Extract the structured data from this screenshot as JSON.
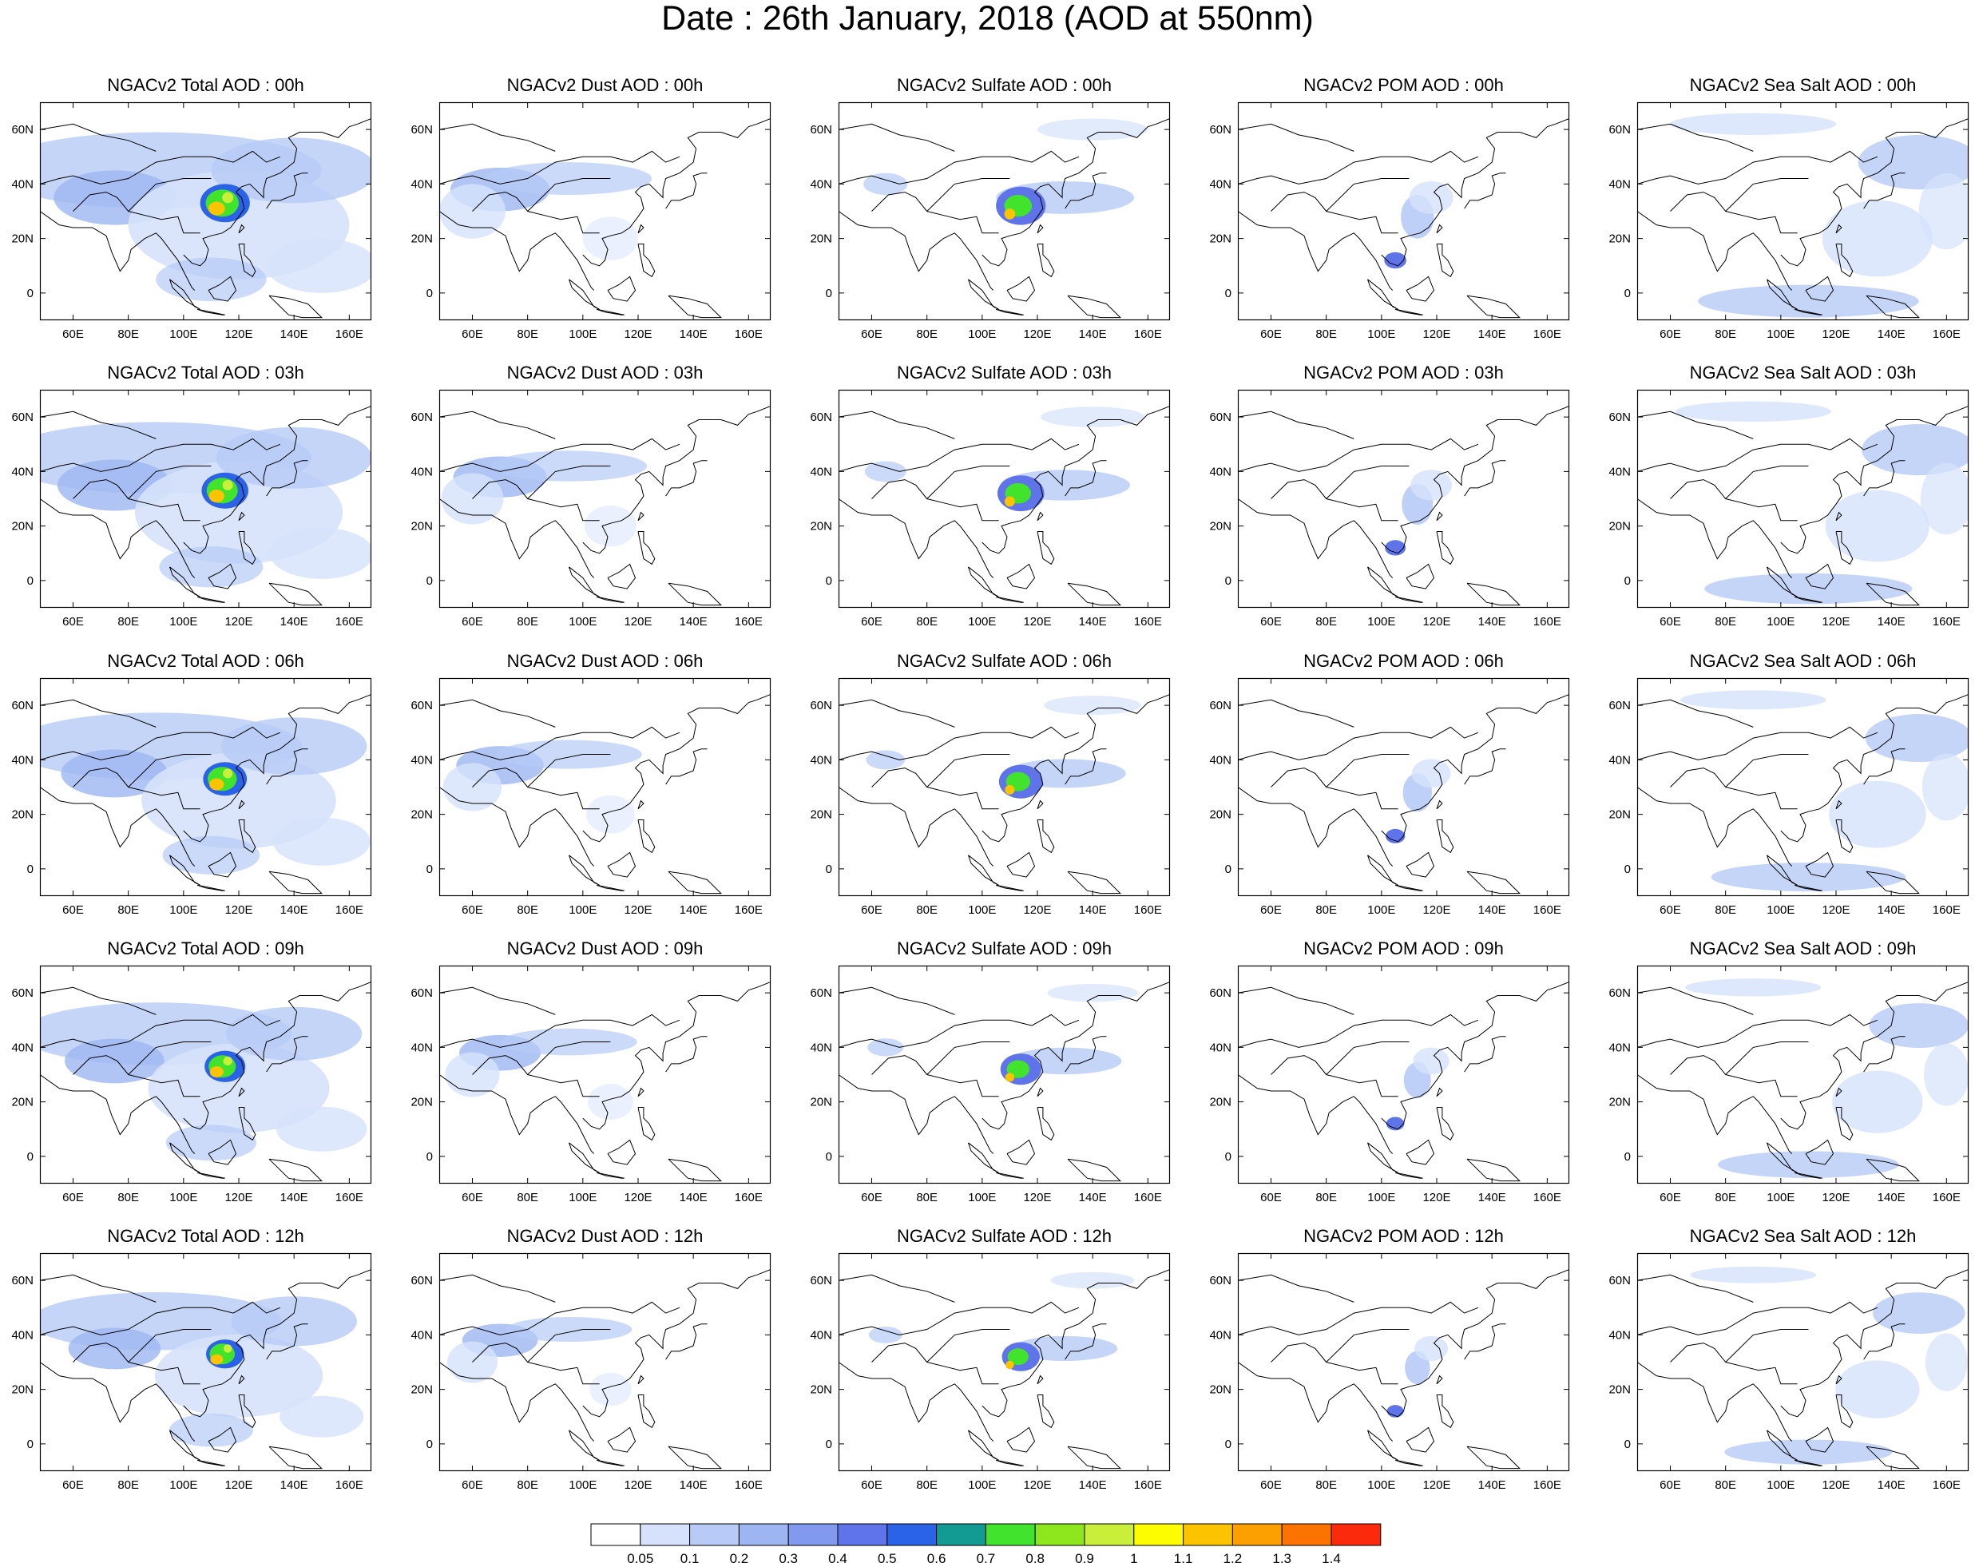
{
  "title": "Date : 26th January, 2018 (AOD at 550nm)",
  "panels": [
    [
      "NGACv2 Total AOD : 00h",
      "NGACv2 Dust AOD : 00h",
      "NGACv2 Sulfate AOD : 00h",
      "NGACv2 POM AOD : 00h",
      "NGACv2 Sea Salt AOD : 00h"
    ],
    [
      "NGACv2 Total AOD : 03h",
      "NGACv2 Dust AOD : 03h",
      "NGACv2 Sulfate AOD : 03h",
      "NGACv2 POM AOD : 03h",
      "NGACv2 Sea Salt AOD : 03h"
    ],
    [
      "NGACv2 Total AOD : 06h",
      "NGACv2 Dust AOD : 06h",
      "NGACv2 Sulfate AOD : 06h",
      "NGACv2 POM AOD : 06h",
      "NGACv2 Sea Salt AOD : 06h"
    ],
    [
      "NGACv2 Total AOD : 09h",
      "NGACv2 Dust AOD : 09h",
      "NGACv2 Sulfate AOD : 09h",
      "NGACv2 POM AOD : 09h",
      "NGACv2 Sea Salt  AOD : 09h"
    ],
    [
      "NGACv2 Total AOD  : 12h",
      "NGACv2 Dust AOD : 12h",
      "NGACv2 Sulfate AOD : 12h",
      "NGACv2 POM  AOD : 12h",
      "NGACv2 Sea Salt  AOD : 12h"
    ]
  ],
  "x_ticks": [
    "60E",
    "80E",
    "100E",
    "120E",
    "140E",
    "160E"
  ],
  "y_ticks": [
    "60N",
    "40N",
    "20N",
    "0"
  ],
  "colorbar": {
    "labels": [
      "0.05",
      "0.1",
      "0.2",
      "0.3",
      "0.4",
      "0.5",
      "0.6",
      "0.7",
      "0.8",
      "0.9",
      "1",
      "1.1",
      "1.2",
      "1.3",
      "1.4"
    ],
    "colors": [
      "#ffffff",
      "#d6e2fb",
      "#b7cbf6",
      "#9db6f2",
      "#8199ef",
      "#5f74e8",
      "#2a63e8",
      "#119b93",
      "#41e32c",
      "#8ee61d",
      "#c9ef3a",
      "#fdfd00",
      "#fcc400",
      "#fc9f00",
      "#fb7300",
      "#fb2a0c"
    ]
  }
}
